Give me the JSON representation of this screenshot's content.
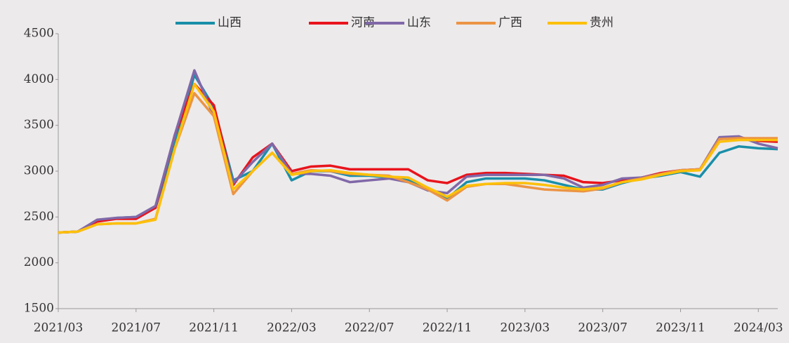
{
  "chart_data": {
    "type": "line",
    "x": [
      "2021/03",
      "2021/04",
      "2021/05",
      "2021/06",
      "2021/07",
      "2021/08",
      "2021/09",
      "2021/10",
      "2021/11",
      "2021/12",
      "2022/01",
      "2022/02",
      "2022/03",
      "2022/04",
      "2022/05",
      "2022/06",
      "2022/07",
      "2022/08",
      "2022/09",
      "2022/10",
      "2022/11",
      "2022/12",
      "2023/01",
      "2023/02",
      "2023/03",
      "2023/04",
      "2023/05",
      "2023/06",
      "2023/07",
      "2023/08",
      "2023/09",
      "2023/10",
      "2023/11",
      "2023/12",
      "2024/01",
      "2024/02",
      "2024/03",
      "2024/04"
    ],
    "xticks": [
      "2021/03",
      "2021/07",
      "2021/11",
      "2022/03",
      "2022/07",
      "2022/11",
      "2023/03",
      "2023/07",
      "2023/11",
      "2024/03"
    ],
    "ylim": [
      1500,
      4500
    ],
    "yticks": [
      1500,
      2000,
      2500,
      3000,
      3500,
      4000,
      4500
    ],
    "series": [
      {
        "name": "山西",
        "color": "#1a8fa8",
        "values": [
          2330,
          2340,
          2460,
          2490,
          2500,
          2600,
          3300,
          4050,
          3700,
          2900,
          3000,
          3300,
          2900,
          3000,
          3000,
          2950,
          2950,
          2930,
          2900,
          2800,
          2700,
          2880,
          2920,
          2920,
          2920,
          2900,
          2850,
          2800,
          2800,
          2870,
          2920,
          2950,
          2990,
          2940,
          3200,
          3270,
          3250,
          3240
        ]
      },
      {
        "name": "河南",
        "color": "#e8141c",
        "values": [
          2330,
          2340,
          2450,
          2480,
          2480,
          2600,
          3400,
          3950,
          3720,
          2850,
          3150,
          3300,
          3000,
          3050,
          3060,
          3020,
          3020,
          3020,
          3020,
          2900,
          2870,
          2960,
          2980,
          2980,
          2970,
          2960,
          2950,
          2880,
          2870,
          2900,
          2930,
          2980,
          3010,
          3020,
          3350,
          3370,
          3330,
          3320
        ]
      },
      {
        "name": "山东",
        "color": "#8068a8",
        "values": [
          2330,
          2340,
          2470,
          2490,
          2500,
          2620,
          3400,
          4100,
          3600,
          2870,
          3100,
          3300,
          2970,
          2970,
          2950,
          2880,
          2900,
          2920,
          2880,
          2790,
          2760,
          2940,
          2960,
          2960,
          2960,
          2960,
          2920,
          2820,
          2850,
          2920,
          2930,
          2970,
          3010,
          3020,
          3370,
          3380,
          3300,
          3250
        ]
      },
      {
        "name": "广西",
        "color": "#eb9444",
        "values": [
          2330,
          2340,
          2420,
          2430,
          2430,
          2480,
          3250,
          3850,
          3600,
          2750,
          3000,
          3200,
          2970,
          3010,
          3000,
          2970,
          2960,
          2950,
          2880,
          2800,
          2680,
          2830,
          2860,
          2860,
          2830,
          2800,
          2790,
          2780,
          2810,
          2880,
          2920,
          2970,
          3010,
          3020,
          3350,
          3360,
          3360,
          3360
        ]
      },
      {
        "name": "贵州",
        "color": "#fcc00a",
        "values": [
          2330,
          2340,
          2420,
          2430,
          2430,
          2470,
          3250,
          3950,
          3650,
          2800,
          3000,
          3200,
          2960,
          3000,
          3010,
          2980,
          2960,
          2940,
          2930,
          2820,
          2720,
          2840,
          2860,
          2870,
          2870,
          2850,
          2820,
          2800,
          2820,
          2880,
          2910,
          2960,
          3000,
          3010,
          3320,
          3340,
          3340,
          3340
        ]
      }
    ]
  }
}
